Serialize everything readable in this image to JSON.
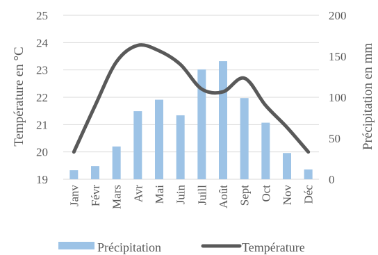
{
  "chart_data": {
    "type": "bar",
    "categories": [
      "Janv",
      "Févr",
      "Mars",
      "Avr",
      "Mai",
      "Juin",
      "Juill",
      "Août",
      "Sept",
      "Oct",
      "Nov",
      "Déc"
    ],
    "series": [
      {
        "name": "Précipitation",
        "type": "bar",
        "axis": "right",
        "color": "#9dc3e6",
        "values": [
          11,
          16,
          40,
          83,
          97,
          78,
          134,
          144,
          99,
          69,
          32,
          12
        ]
      },
      {
        "name": "Température",
        "type": "line",
        "axis": "left",
        "color": "#595959",
        "values": [
          20.0,
          21.7,
          23.3,
          23.9,
          23.7,
          23.2,
          22.3,
          22.2,
          22.7,
          21.7,
          20.9,
          20.0
        ]
      }
    ],
    "ylabel": "Température en °C",
    "ylabel_right": "Précipitation en mm",
    "ylim": [
      19,
      25
    ],
    "ylim_right": [
      0,
      200
    ],
    "yticks": [
      "19",
      "20",
      "21",
      "22",
      "23",
      "24",
      "25"
    ],
    "yticks_right": [
      "0",
      "50",
      "100",
      "150",
      "200"
    ],
    "grid": true,
    "legend": "bottom"
  }
}
